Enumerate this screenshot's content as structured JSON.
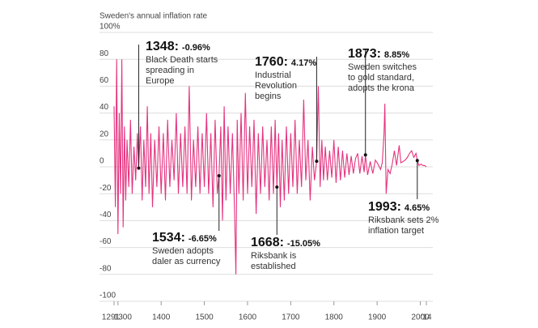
{
  "chart_data": {
    "type": "line",
    "title": "Sweden's annual inflation rate",
    "color": "#e5337f",
    "grid": true,
    "x": [
      1291,
      1294,
      1297,
      1300,
      1303,
      1306,
      1309,
      1312,
      1315,
      1318,
      1321,
      1325,
      1329,
      1333,
      1337,
      1341,
      1345,
      1348,
      1352,
      1356,
      1360,
      1364,
      1368,
      1372,
      1376,
      1380,
      1385,
      1390,
      1395,
      1400,
      1405,
      1410,
      1415,
      1420,
      1425,
      1430,
      1435,
      1440,
      1445,
      1450,
      1455,
      1460,
      1465,
      1470,
      1475,
      1480,
      1485,
      1490,
      1495,
      1500,
      1505,
      1510,
      1515,
      1520,
      1525,
      1530,
      1534,
      1538,
      1542,
      1546,
      1550,
      1555,
      1560,
      1565,
      1570,
      1573,
      1576,
      1580,
      1585,
      1590,
      1595,
      1600,
      1605,
      1610,
      1615,
      1620,
      1625,
      1630,
      1635,
      1640,
      1645,
      1650,
      1655,
      1660,
      1664,
      1668,
      1672,
      1676,
      1680,
      1685,
      1690,
      1695,
      1700,
      1705,
      1710,
      1715,
      1720,
      1725,
      1730,
      1735,
      1740,
      1745,
      1750,
      1755,
      1760,
      1764,
      1768,
      1772,
      1776,
      1780,
      1785,
      1790,
      1795,
      1800,
      1805,
      1810,
      1815,
      1820,
      1825,
      1830,
      1835,
      1840,
      1845,
      1850,
      1855,
      1860,
      1865,
      1870,
      1873,
      1878,
      1884,
      1890,
      1896,
      1902,
      1908,
      1912,
      1916,
      1918,
      1921,
      1925,
      1930,
      1935,
      1940,
      1945,
      1951,
      1955,
      1960,
      1965,
      1970,
      1975,
      1980,
      1985,
      1990,
      1993,
      1997,
      2002,
      2006,
      2010,
      2014
    ],
    "values": [
      45,
      -30,
      80,
      -50,
      40,
      -20,
      80,
      -45,
      30,
      -25,
      20,
      -15,
      35,
      -20,
      15,
      -10,
      25,
      -0.96,
      30,
      -25,
      20,
      -15,
      45,
      -20,
      25,
      -30,
      20,
      -15,
      30,
      -20,
      25,
      -25,
      35,
      -15,
      20,
      -10,
      40,
      -20,
      25,
      -15,
      30,
      -20,
      60,
      -25,
      20,
      -15,
      30,
      -20,
      25,
      -15,
      40,
      -20,
      25,
      -30,
      35,
      -20,
      -6.65,
      30,
      -40,
      45,
      -25,
      30,
      -20,
      25,
      -35,
      -80,
      35,
      -20,
      40,
      -25,
      55,
      -20,
      30,
      -15,
      35,
      -35,
      25,
      -20,
      30,
      -15,
      20,
      -25,
      30,
      -20,
      35,
      -15.05,
      25,
      -30,
      20,
      -25,
      30,
      -20,
      25,
      -15,
      35,
      -20,
      20,
      -15,
      50,
      -10,
      20,
      -25,
      15,
      -10,
      4.17,
      60,
      -15,
      20,
      -10,
      15,
      -10,
      12,
      -8,
      20,
      -12,
      15,
      -10,
      12,
      -8,
      10,
      -6,
      8,
      -5,
      6,
      10,
      -5,
      8,
      -4,
      8.85,
      -6,
      4,
      -5,
      5,
      2,
      -2,
      3,
      25,
      47,
      -20,
      -2,
      -5,
      2,
      12,
      1,
      16,
      3,
      4,
      5,
      7,
      10,
      12,
      7,
      10,
      4.65,
      1,
      2,
      1,
      1,
      0
    ],
    "xlim": [
      1291,
      2014
    ],
    "ylim": [
      -100,
      100
    ],
    "xticks": [
      1291,
      1300,
      1400,
      1500,
      1600,
      1700,
      1800,
      1900,
      2000,
      {
        "value": 2014,
        "label": "'14"
      }
    ],
    "yticks": [
      {
        "value": 100,
        "label": "100%"
      },
      80,
      60,
      40,
      20,
      0,
      -20,
      -40,
      -60,
      -80,
      -100
    ],
    "annotations": [
      {
        "label": "1348:",
        "x": 1348,
        "value": -0.96,
        "value_label": "-0.96%",
        "lines": [
          "Black Death starts",
          "spreading in",
          "Europe"
        ]
      },
      {
        "label": "1534:",
        "x": 1534,
        "value": -6.65,
        "value_label": "-6.65%",
        "lines": [
          "Sweden adopts",
          "daler as currency"
        ]
      },
      {
        "label": "1668:",
        "x": 1668,
        "value": -15.05,
        "value_label": "-15.05%",
        "lines": [
          "Riksbank is",
          "established"
        ]
      },
      {
        "label": "1760:",
        "x": 1760,
        "value": 4.17,
        "value_label": "4.17%",
        "lines": [
          "Industrial",
          "Revolution",
          "begins"
        ]
      },
      {
        "label": "1873:",
        "x": 1873,
        "value": 8.85,
        "value_label": "8.85%",
        "lines": [
          "Sweden switches",
          "to gold standard,",
          "adopts the krona"
        ]
      },
      {
        "label": "1993:",
        "x": 1993,
        "value": 4.65,
        "value_label": "4.65%",
        "lines": [
          "Riksbank sets 2%",
          "inflation target"
        ]
      }
    ]
  }
}
